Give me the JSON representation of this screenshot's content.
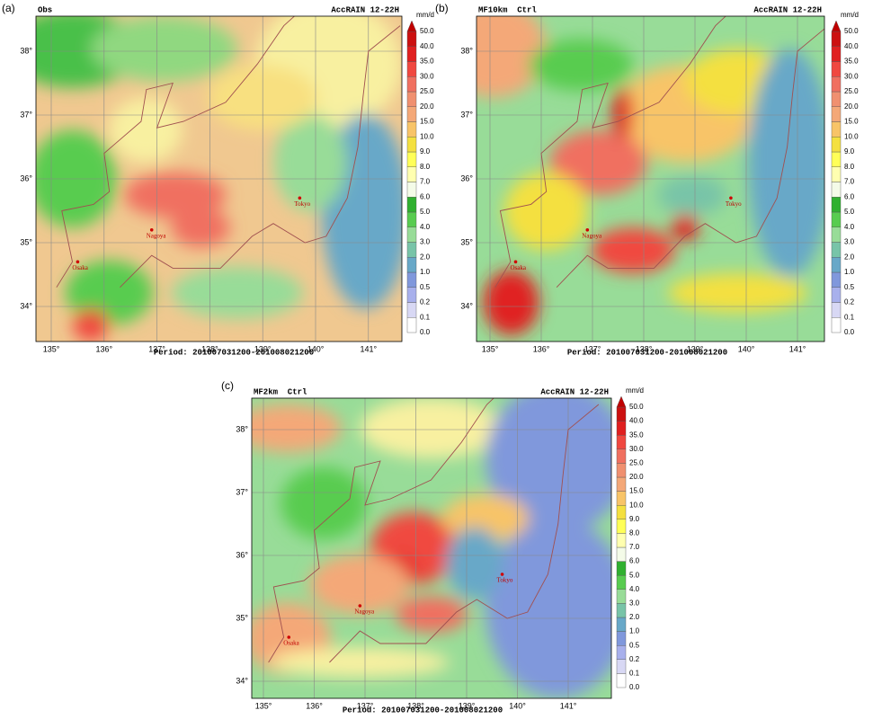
{
  "panels": [
    {
      "label": "(a)",
      "name": "Obs",
      "title": "AccRAIN 12-22H",
      "period": "Period: 201007031200-201008021200"
    },
    {
      "label": "(b)",
      "name": "MF10km  Ctrl",
      "title": "AccRAIN 12-22H",
      "period": "Period: 201007031200-201008021200"
    },
    {
      "label": "(c)",
      "name": "MF2km  Ctrl",
      "title": "AccRAIN 12-22H",
      "period": "Period: 201007031200-201008021200"
    }
  ],
  "colorbar": {
    "unit": "mm/d",
    "labels": [
      "0.0",
      "0.1",
      "0.2",
      "0.5",
      "1.0",
      "2.0",
      "3.0",
      "4.0",
      "5.0",
      "6.0",
      "7.0",
      "8.0",
      "9.0",
      "10.0",
      "15.0",
      "20.0",
      "25.0",
      "30.0",
      "35.0",
      "40.0",
      "50.0"
    ]
  },
  "lon_labels": [
    "135°",
    "136°",
    "137°",
    "138°",
    "139°",
    "140°",
    "141°"
  ],
  "lat_labels": [
    "34°",
    "35°",
    "36°",
    "37°",
    "38°"
  ],
  "cities": [
    "Osaka",
    "Nagoya",
    "Tokyo"
  ]
}
